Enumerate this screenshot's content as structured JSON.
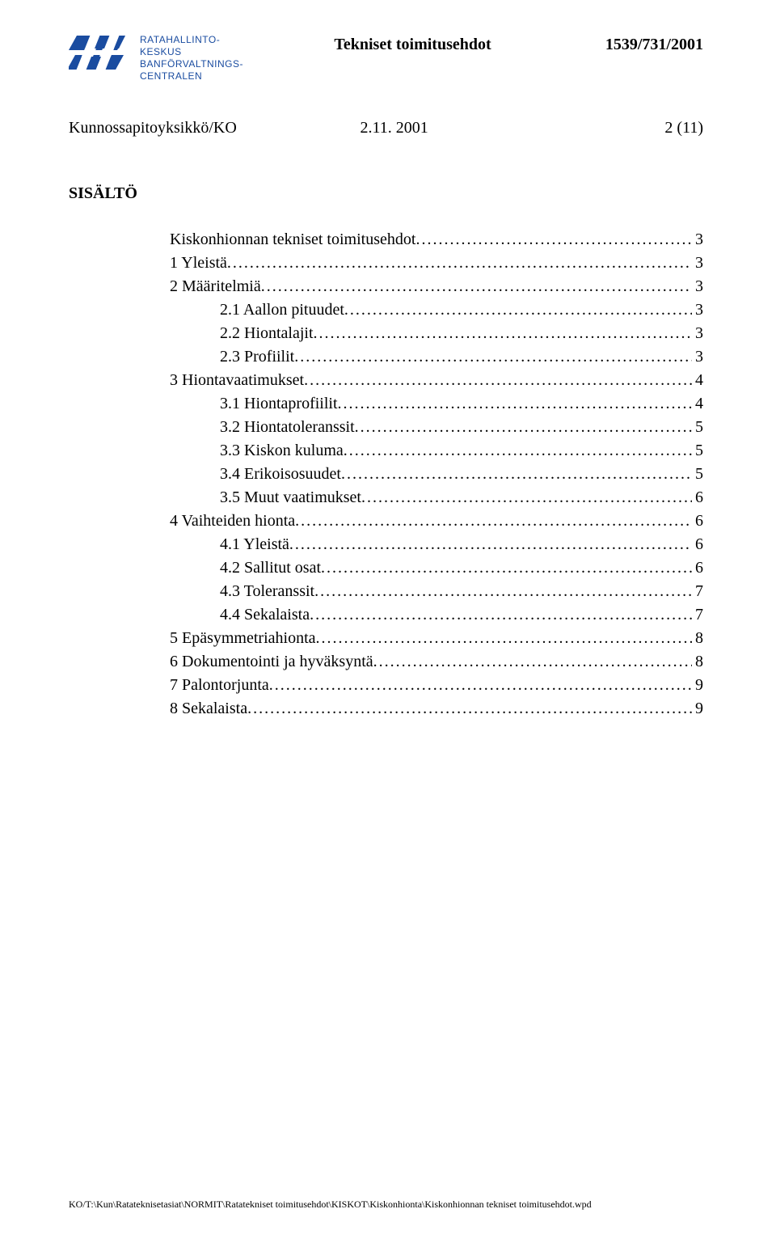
{
  "header": {
    "logo_lines": [
      "RATAHALLINTO-",
      "KESKUS",
      "BANFÖRVALTNINGS-",
      "CENTRALEN"
    ],
    "title": "Tekniset toimitusehdot",
    "doc_number": "1539/731/2001",
    "logo_color": "#1a4ca0"
  },
  "subheader": {
    "unit": "Kunnossapitoyksikkö/KO",
    "date": "2.11. 2001",
    "page": "2 (11)"
  },
  "toc": {
    "title": "SISÄLTÖ",
    "entries": [
      {
        "label": "Kiskonhionnan tekniset toimitusehdot",
        "page": "3",
        "indent": 0
      },
      {
        "label": "1 Yleistä",
        "page": "3",
        "indent": 0
      },
      {
        "label": "2 Määritelmiä",
        "page": "3",
        "indent": 0
      },
      {
        "label": "2.1 Aallon pituudet",
        "page": "3",
        "indent": 1
      },
      {
        "label": "2.2 Hiontalajit",
        "page": "3",
        "indent": 1
      },
      {
        "label": "2.3 Profiilit",
        "page": "3",
        "indent": 1
      },
      {
        "label": "3 Hiontavaatimukset",
        "page": "4",
        "indent": 0
      },
      {
        "label": "3.1 Hiontaprofiilit",
        "page": "4",
        "indent": 1
      },
      {
        "label": "3.2 Hiontatoleranssit",
        "page": "5",
        "indent": 1
      },
      {
        "label": "3.3 Kiskon kuluma",
        "page": "5",
        "indent": 1
      },
      {
        "label": "3.4 Erikoisosuudet",
        "page": "5",
        "indent": 1
      },
      {
        "label": "3.5 Muut vaatimukset",
        "page": "6",
        "indent": 1
      },
      {
        "label": "4 Vaihteiden hionta",
        "page": "6",
        "indent": 0
      },
      {
        "label": "4.1 Yleistä",
        "page": "6",
        "indent": 1
      },
      {
        "label": "4.2 Sallitut osat",
        "page": "6",
        "indent": 1
      },
      {
        "label": "4.3 Toleranssit",
        "page": "7",
        "indent": 1
      },
      {
        "label": "4.4 Sekalaista",
        "page": "7",
        "indent": 1
      },
      {
        "label": "5 Epäsymmetriahionta",
        "page": "8",
        "indent": 0
      },
      {
        "label": "6 Dokumentointi ja hyväksyntä",
        "page": "8",
        "indent": 0
      },
      {
        "label": "7 Palontorjunta",
        "page": "9",
        "indent": 0
      },
      {
        "label": "8 Sekalaista",
        "page": "9",
        "indent": 0
      }
    ]
  },
  "footer": {
    "path": "KO/T:\\Kun\\Ratateknisetasiat\\NORMIT\\Ratatekniset toimitusehdot\\KISKOT\\Kiskonhionta\\Kiskonhionnan tekniset toimitusehdot.wpd"
  },
  "colors": {
    "text": "#000000",
    "background": "#ffffff"
  }
}
